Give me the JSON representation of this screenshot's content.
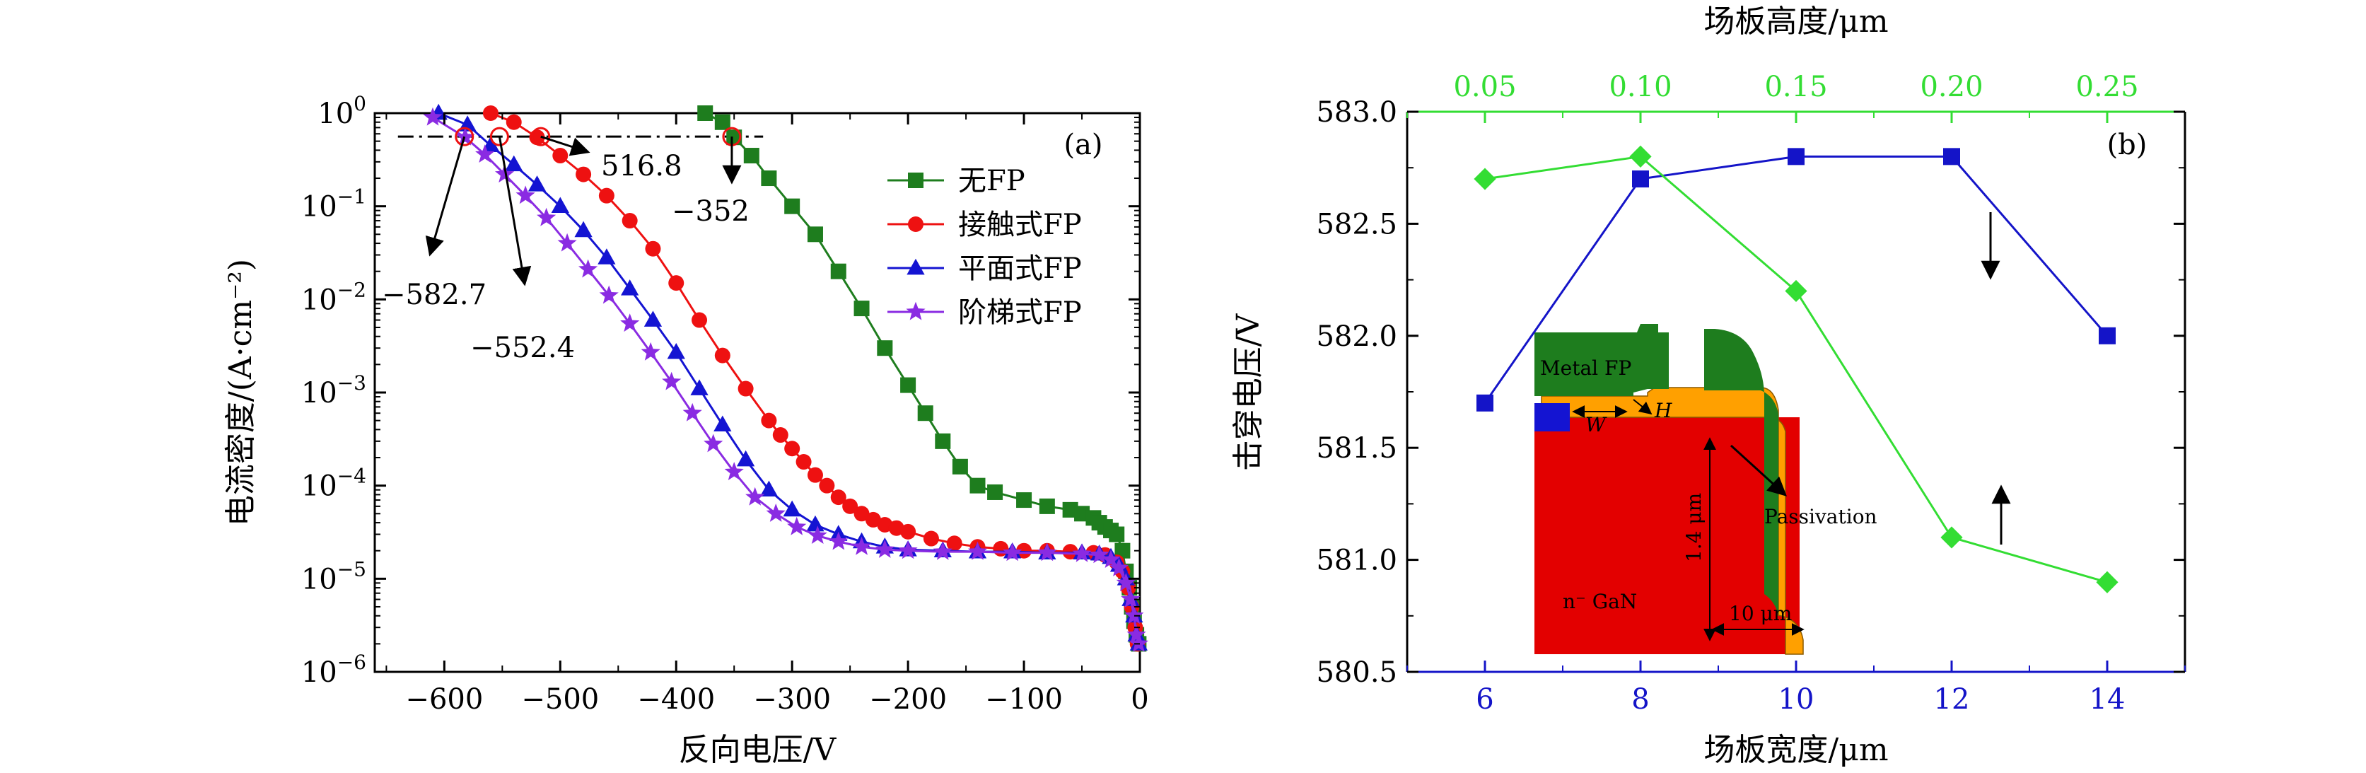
{
  "chart_data": [
    {
      "panel_label": "(a)",
      "type": "line",
      "xlabel": "反向电压/V",
      "ylabel": "电流密度/(A·cm⁻²)",
      "xlim": [
        -660,
        0
      ],
      "ylim_log10": [
        -6,
        0
      ],
      "y_scale": "log",
      "grid": false,
      "legend_position": "top-right",
      "x_ticks": [
        -600,
        -500,
        -400,
        -300,
        -200,
        -100,
        0
      ],
      "x_tick_labels": [
        "−600",
        "−500",
        "−400",
        "−300",
        "−200",
        "−100",
        "0"
      ],
      "y_ticks_log10": [
        0,
        -1,
        -2,
        -3,
        -4,
        -5,
        -6
      ],
      "y_tick_labels": [
        {
          "base": "10",
          "exp": "0"
        },
        {
          "base": "10",
          "exp": "−1"
        },
        {
          "base": "10",
          "exp": "−2"
        },
        {
          "base": "10",
          "exp": "−3"
        },
        {
          "base": "10",
          "exp": "−4"
        },
        {
          "base": "10",
          "exp": "−5"
        },
        {
          "base": "10",
          "exp": "−6"
        }
      ],
      "series": [
        {
          "name": "无FP",
          "color": "#1e7d1e",
          "marker": "square",
          "x": [
            -375,
            -360,
            -350,
            -335,
            -320,
            -300,
            -280,
            -260,
            -240,
            -220,
            -200,
            -185,
            -170,
            -155,
            -140,
            -125,
            -100,
            -80,
            -60,
            -50,
            -40,
            -35,
            -30,
            -25,
            -20,
            -15,
            -12,
            -9,
            -7,
            -5,
            -3,
            -1
          ],
          "y": [
            1.0,
            0.8,
            0.55,
            0.35,
            0.2,
            0.1,
            0.05,
            0.02,
            0.008,
            0.003,
            0.0012,
            0.0006,
            0.0003,
            0.00016,
            0.0001,
            8.5e-05,
            7e-05,
            6e-05,
            5.5e-05,
            5e-05,
            4.5e-05,
            4e-05,
            3.6e-05,
            3.3e-05,
            3e-05,
            2e-05,
            1.2e-05,
            8e-06,
            5e-06,
            3.5e-06,
            2.5e-06,
            2e-06
          ]
        },
        {
          "name": "接触式FP",
          "color": "#ee1111",
          "marker": "circle",
          "x": [
            -560,
            -540,
            -520,
            -500,
            -480,
            -460,
            -440,
            -420,
            -400,
            -380,
            -360,
            -340,
            -320,
            -310,
            -300,
            -290,
            -280,
            -270,
            -260,
            -250,
            -240,
            -230,
            -220,
            -210,
            -200,
            -180,
            -160,
            -140,
            -120,
            -100,
            -80,
            -60,
            -40,
            -30,
            -20,
            -15,
            -10,
            -7,
            -4,
            -2
          ],
          "y": [
            1.0,
            0.8,
            0.55,
            0.35,
            0.22,
            0.13,
            0.07,
            0.035,
            0.015,
            0.006,
            0.0025,
            0.0011,
            0.0005,
            0.00035,
            0.00025,
            0.00018,
            0.00013,
            0.0001,
            7.5e-05,
            6e-05,
            5e-05,
            4.3e-05,
            3.8e-05,
            3.5e-05,
            3.2e-05,
            2.7e-05,
            2.4e-05,
            2.2e-05,
            2.1e-05,
            2e-05,
            2e-05,
            1.95e-05,
            1.9e-05,
            1.8e-05,
            1.5e-05,
            1.2e-05,
            8e-06,
            5e-06,
            3e-06,
            2e-06
          ]
        },
        {
          "name": "平面式FP",
          "color": "#1414d2",
          "marker": "triangle",
          "x": [
            -605,
            -580,
            -560,
            -540,
            -520,
            -500,
            -480,
            -460,
            -440,
            -420,
            -400,
            -380,
            -360,
            -340,
            -320,
            -300,
            -280,
            -260,
            -240,
            -220,
            -200,
            -170,
            -140,
            -110,
            -80,
            -50,
            -35,
            -25,
            -18,
            -12,
            -8,
            -5,
            -3,
            -1
          ],
          "y": [
            1.0,
            0.75,
            0.45,
            0.28,
            0.17,
            0.1,
            0.055,
            0.028,
            0.013,
            0.006,
            0.0027,
            0.0011,
            0.00045,
            0.00019,
            9e-05,
            5.5e-05,
            3.8e-05,
            3e-05,
            2.5e-05,
            2.2e-05,
            2.05e-05,
            2e-05,
            1.95e-05,
            1.95e-05,
            1.9e-05,
            1.9e-05,
            1.85e-05,
            1.7e-05,
            1.4e-05,
            1e-05,
            6e-06,
            4e-06,
            2.5e-06,
            2e-06
          ]
        },
        {
          "name": "阶梯式FP",
          "color": "#8a2be2",
          "marker": "star",
          "x": [
            -610,
            -582,
            -565,
            -548,
            -530,
            -512,
            -494,
            -476,
            -458,
            -440,
            -422,
            -404,
            -386,
            -368,
            -350,
            -332,
            -314,
            -296,
            -278,
            -260,
            -240,
            -220,
            -200,
            -170,
            -140,
            -110,
            -80,
            -50,
            -35,
            -25,
            -18,
            -12,
            -8,
            -5,
            -3,
            -1
          ],
          "y": [
            0.9,
            0.55,
            0.36,
            0.22,
            0.13,
            0.075,
            0.04,
            0.021,
            0.011,
            0.0055,
            0.0027,
            0.0013,
            0.0006,
            0.00028,
            0.00014,
            7.5e-05,
            5e-05,
            3.6e-05,
            2.9e-05,
            2.5e-05,
            2.2e-05,
            2.05e-05,
            2e-05,
            1.95e-05,
            1.95e-05,
            1.9e-05,
            1.9e-05,
            1.85e-05,
            1.8e-05,
            1.6e-05,
            1.3e-05,
            9e-06,
            6e-06,
            4e-06,
            2.5e-06,
            2e-06
          ]
        }
      ],
      "reference_line": {
        "y": 0.56,
        "x_from": -640,
        "x_to": -325
      },
      "annotations": [
        {
          "text": "516.8",
          "x": -516.8,
          "y": 0.56
        },
        {
          "text": "−352",
          "x": -352,
          "y": 0.56
        },
        {
          "text": "−582.7",
          "x": -582.7,
          "y": 0.56
        },
        {
          "text": "−552.4",
          "x": -552.4,
          "y": 0.56
        }
      ]
    },
    {
      "panel_label": "(b)",
      "type": "line",
      "xlabel": "场板宽度/μm",
      "x2label": "场板高度/μm",
      "ylabel": "击穿电压/V",
      "xlim": [
        5,
        15
      ],
      "x2lim": [
        0.025,
        0.275
      ],
      "ylim": [
        580.5,
        583.0
      ],
      "grid": false,
      "x_ticks": [
        6,
        8,
        10,
        12,
        14
      ],
      "x_tick_labels": [
        "6",
        "8",
        "10",
        "12",
        "14"
      ],
      "x2_ticks": [
        0.05,
        0.1,
        0.15,
        0.2,
        0.25
      ],
      "x2_tick_labels": [
        "0.05",
        "0.10",
        "0.15",
        "0.20",
        "0.25"
      ],
      "y_ticks": [
        580.5,
        581.0,
        581.5,
        582.0,
        582.5,
        583.0
      ],
      "y_tick_labels": [
        "580.5",
        "581.0",
        "581.5",
        "582.0",
        "582.5",
        "583.0"
      ],
      "bottom_axis_color": "#1414c8",
      "top_axis_color": "#33dd33",
      "series": [
        {
          "axis": "bottom",
          "color": "#1414c8",
          "marker": "square",
          "x": [
            6,
            8,
            10,
            12,
            14
          ],
          "y": [
            581.7,
            582.7,
            582.8,
            582.8,
            582.0
          ]
        },
        {
          "axis": "top",
          "color": "#33dd33",
          "marker": "diamond",
          "x": [
            0.05,
            0.1,
            0.15,
            0.2,
            0.25
          ],
          "y": [
            582.7,
            582.8,
            582.2,
            581.1,
            580.9
          ]
        }
      ],
      "inset_labels": {
        "metal": "Metal FP",
        "height": "H",
        "width": "W",
        "passivation": "Passivation",
        "thickness": "1.4 μm",
        "length": "10 μm",
        "substrate": "n⁻ GaN"
      }
    }
  ]
}
